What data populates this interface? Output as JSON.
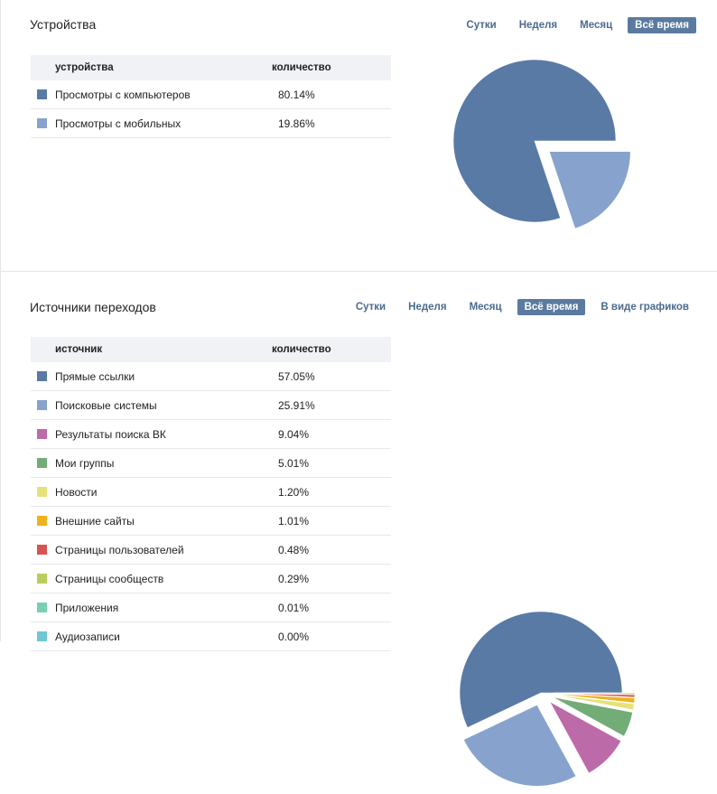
{
  "devices": {
    "title": "Устройства",
    "tabs": [
      "Сутки",
      "Неделя",
      "Месяц",
      "Всё время"
    ],
    "active_tab": "Всё время",
    "col_source": "устройства",
    "col_count": "количество",
    "rows": [
      {
        "label": "Просмотры с компьютеров",
        "value": "80.14%",
        "color": "#5a7aa6"
      },
      {
        "label": "Просмотры с мобильных",
        "value": "19.86%",
        "color": "#87a3cd"
      }
    ]
  },
  "sources": {
    "title": "Источники переходов",
    "tabs": [
      "Сутки",
      "Неделя",
      "Месяц",
      "Всё время",
      "В виде графиков"
    ],
    "active_tab": "Всё время",
    "col_source": "источник",
    "col_count": "количество",
    "rows": [
      {
        "label": "Прямые ссылки",
        "value": "57.05%",
        "color": "#5a7aa6"
      },
      {
        "label": "Поисковые системы",
        "value": "25.91%",
        "color": "#87a3cd"
      },
      {
        "label": "Результаты поиска ВК",
        "value": "9.04%",
        "color": "#bd6aa9"
      },
      {
        "label": "Мои группы",
        "value": "5.01%",
        "color": "#72ac77"
      },
      {
        "label": "Новости",
        "value": "1.20%",
        "color": "#e6e27a"
      },
      {
        "label": "Внешние сайты",
        "value": "1.01%",
        "color": "#eeb21c"
      },
      {
        "label": "Страницы пользователей",
        "value": "0.48%",
        "color": "#d55452"
      },
      {
        "label": "Страницы сообществ",
        "value": "0.29%",
        "color": "#b9cd5c"
      },
      {
        "label": "Приложения",
        "value": "0.01%",
        "color": "#77d1b0"
      },
      {
        "label": "Аудиозаписи",
        "value": "0.00%",
        "color": "#6fc6d4"
      }
    ]
  },
  "chart_data": [
    {
      "type": "pie",
      "title": "Устройства",
      "categories": [
        "Просмотры с компьютеров",
        "Просмотры с мобильных"
      ],
      "values": [
        80.14,
        19.86
      ]
    },
    {
      "type": "pie",
      "title": "Источники переходов",
      "categories": [
        "Прямые ссылки",
        "Поисковые системы",
        "Результаты поиска ВК",
        "Мои группы",
        "Новости",
        "Внешние сайты",
        "Страницы пользователей",
        "Страницы сообществ",
        "Приложения",
        "Аудиозаписи"
      ],
      "values": [
        57.05,
        25.91,
        9.04,
        5.01,
        1.2,
        1.01,
        0.48,
        0.29,
        0.01,
        0.0
      ]
    }
  ]
}
